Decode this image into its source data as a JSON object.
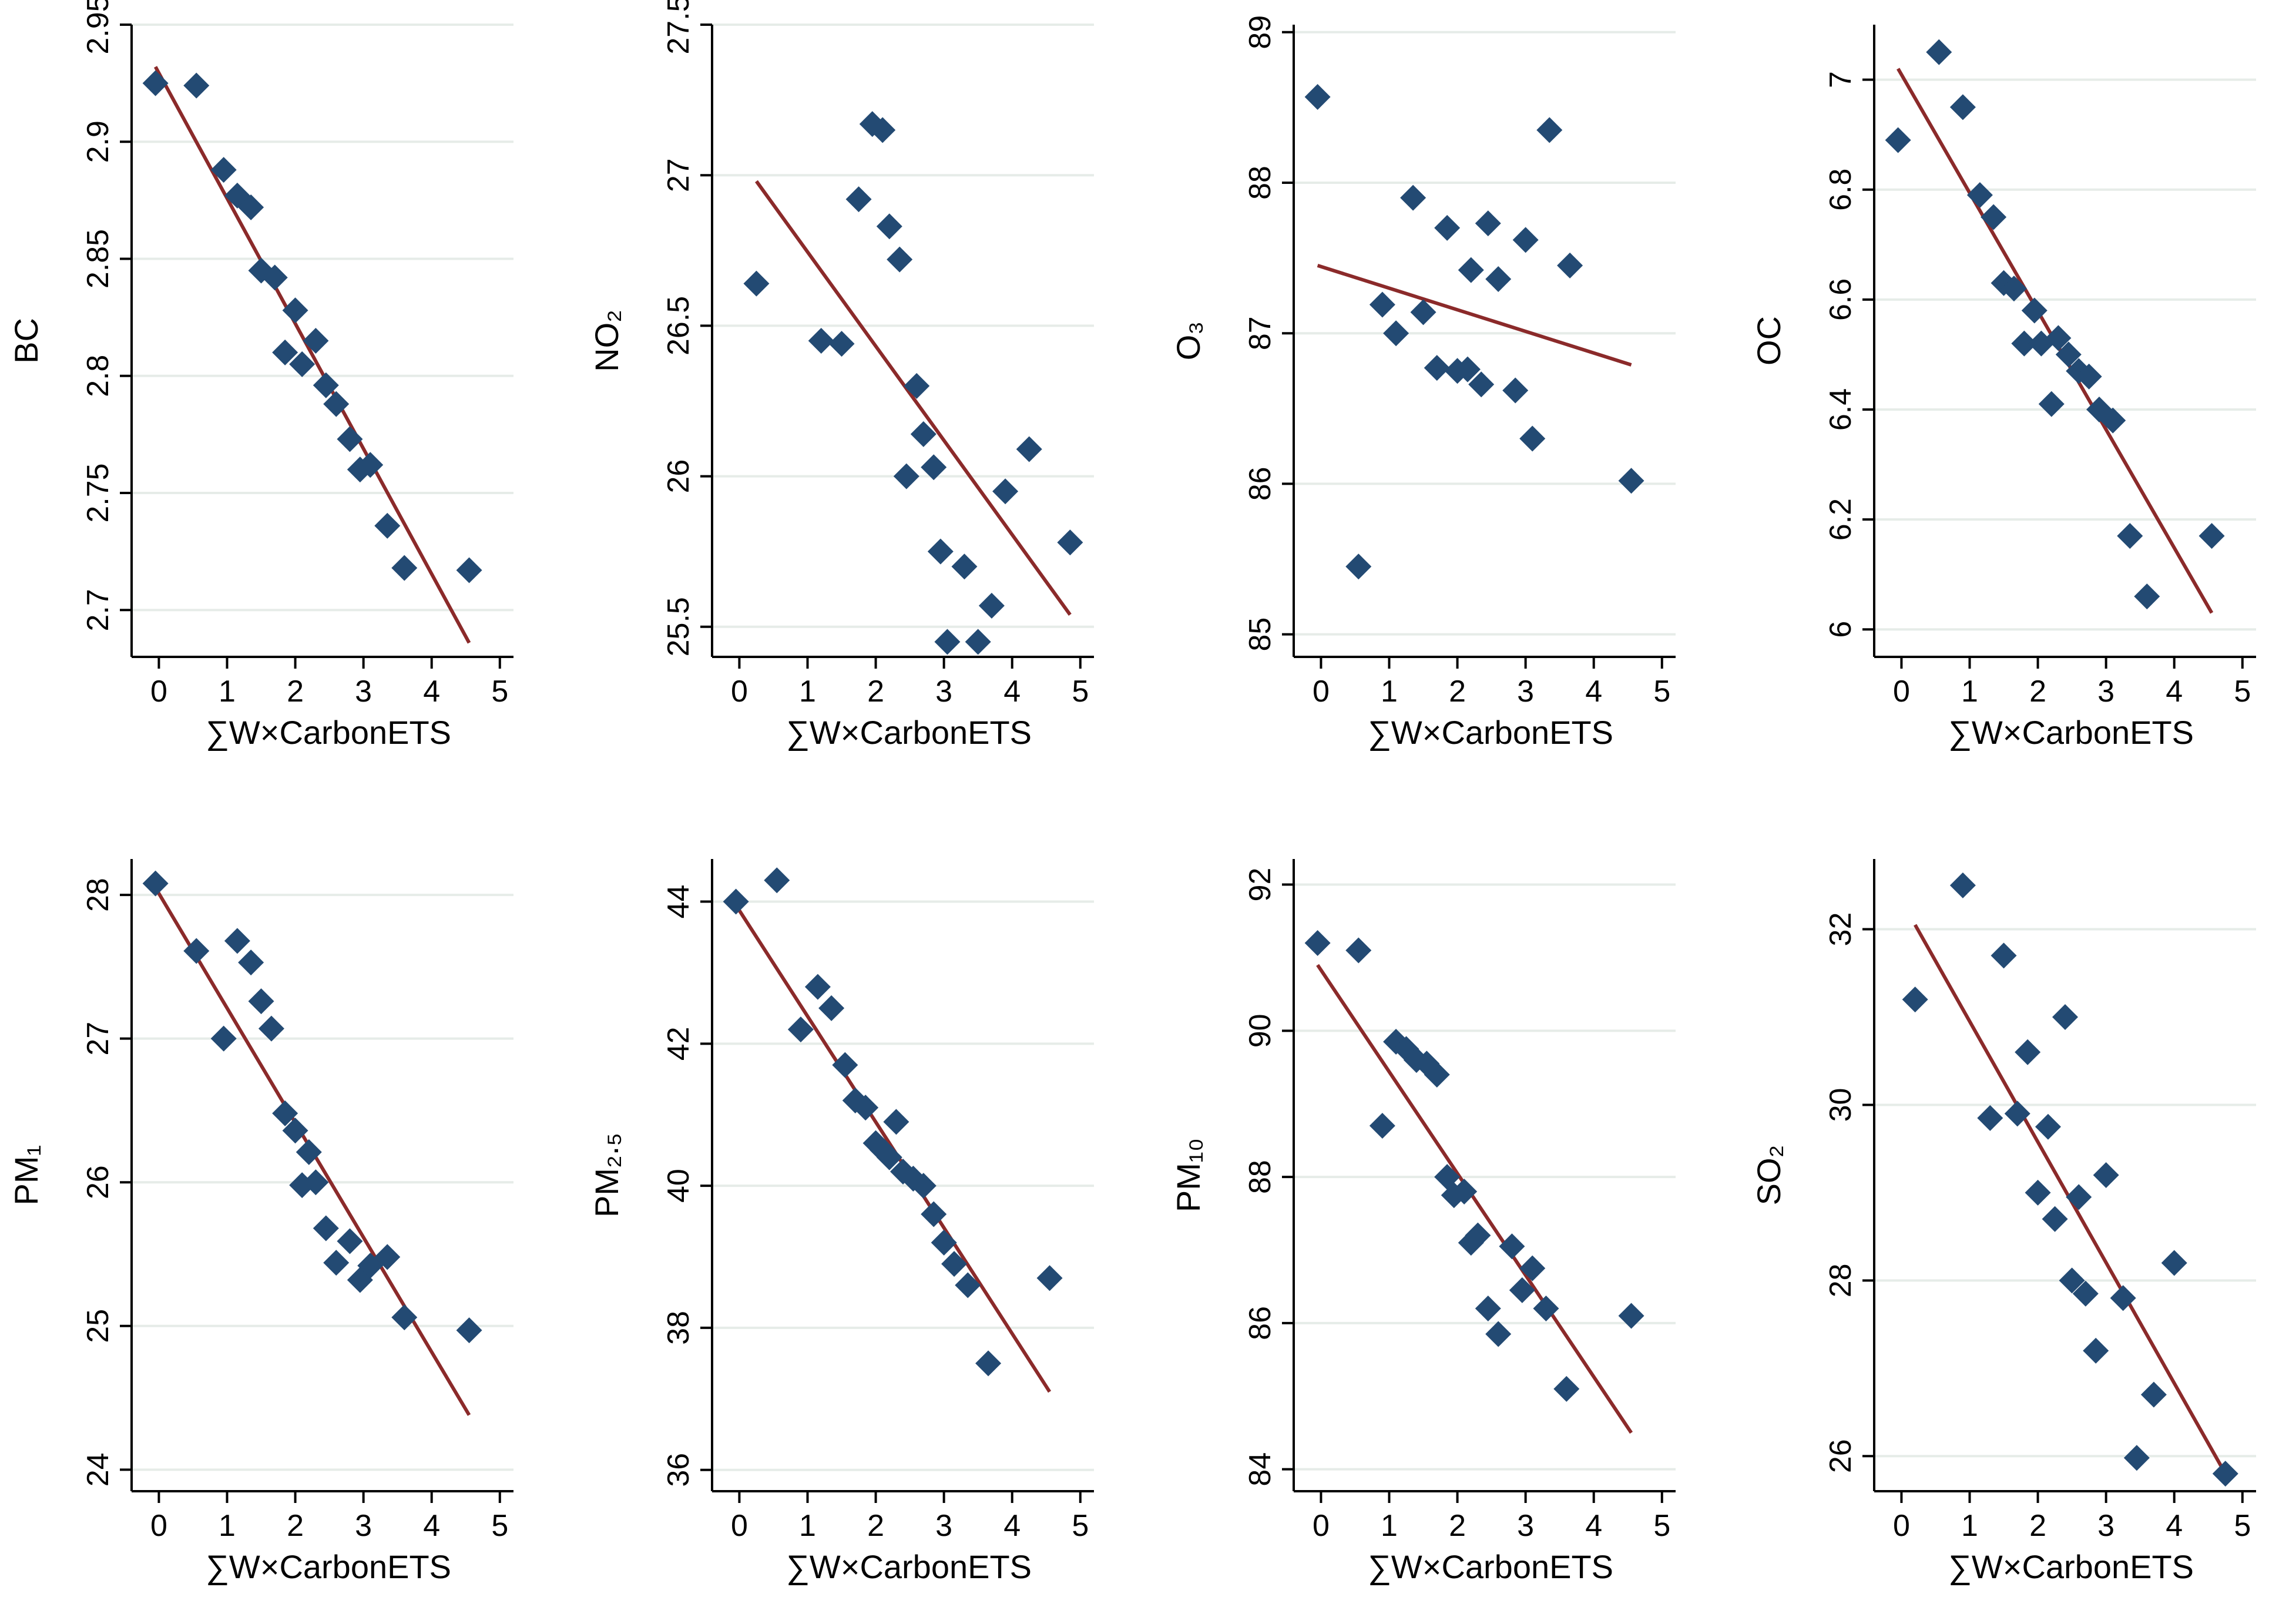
{
  "figure": {
    "background": "#ffffff",
    "marker_color": "#234a73",
    "fit_line_color": "#8b2a2a",
    "grid_color": "#e6ece8"
  },
  "chart_data": [
    {
      "type": "scatter",
      "id": "bc",
      "ylabel": "BC",
      "xlabel": "∑W×CarbonETS",
      "xlim": [
        -0.4,
        5.2
      ],
      "ylim": [
        2.68,
        2.95
      ],
      "xticks": [
        "0",
        "1",
        "2",
        "3",
        "4",
        "5"
      ],
      "yticks": [
        "2.7",
        "2.75",
        "2.8",
        "2.85",
        "2.9",
        "2.95"
      ],
      "points": [
        [
          -0.05,
          2.925
        ],
        [
          0.55,
          2.924
        ],
        [
          0.95,
          2.888
        ],
        [
          1.15,
          2.877
        ],
        [
          1.35,
          2.872
        ],
        [
          1.5,
          2.845
        ],
        [
          1.7,
          2.842
        ],
        [
          1.85,
          2.81
        ],
        [
          2.0,
          2.828
        ],
        [
          2.1,
          2.805
        ],
        [
          2.3,
          2.815
        ],
        [
          2.45,
          2.796
        ],
        [
          2.6,
          2.788
        ],
        [
          2.8,
          2.773
        ],
        [
          2.95,
          2.76
        ],
        [
          3.1,
          2.762
        ],
        [
          3.35,
          2.736
        ],
        [
          3.6,
          2.718
        ],
        [
          4.55,
          2.717
        ]
      ],
      "fit": [
        [
          -0.05,
          2.932
        ],
        [
          4.55,
          2.686
        ]
      ]
    },
    {
      "type": "scatter",
      "id": "no2",
      "ylabel": "NO₂",
      "xlabel": "∑W×CarbonETS",
      "xlim": [
        -0.4,
        5.2
      ],
      "ylim": [
        25.4,
        27.5
      ],
      "xticks": [
        "0",
        "1",
        "2",
        "3",
        "4",
        "5"
      ],
      "yticks": [
        "25.5",
        "26",
        "26.5",
        "27",
        "27.5"
      ],
      "points": [
        [
          0.25,
          26.64
        ],
        [
          1.2,
          26.45
        ],
        [
          1.5,
          26.44
        ],
        [
          1.75,
          26.92
        ],
        [
          1.95,
          27.17
        ],
        [
          2.1,
          27.15
        ],
        [
          2.2,
          26.83
        ],
        [
          2.35,
          26.72
        ],
        [
          2.45,
          26.0
        ],
        [
          2.6,
          26.3
        ],
        [
          2.7,
          26.14
        ],
        [
          2.85,
          26.03
        ],
        [
          2.95,
          25.75
        ],
        [
          3.05,
          25.45
        ],
        [
          3.3,
          25.7
        ],
        [
          3.5,
          25.45
        ],
        [
          3.7,
          25.57
        ],
        [
          3.9,
          25.95
        ],
        [
          4.25,
          26.09
        ],
        [
          4.85,
          25.78
        ]
      ],
      "fit": [
        [
          0.25,
          26.98
        ],
        [
          4.85,
          25.54
        ]
      ]
    },
    {
      "type": "scatter",
      "id": "o3",
      "ylabel": "O₃",
      "xlabel": "∑W×CarbonETS",
      "xlim": [
        -0.4,
        5.2
      ],
      "ylim": [
        84.85,
        89.05
      ],
      "xticks": [
        "0",
        "1",
        "2",
        "3",
        "4",
        "5"
      ],
      "yticks": [
        "85",
        "86",
        "87",
        "88",
        "89"
      ],
      "points": [
        [
          -0.05,
          88.57
        ],
        [
          0.55,
          85.45
        ],
        [
          0.9,
          87.19
        ],
        [
          1.1,
          87.0
        ],
        [
          1.35,
          87.9
        ],
        [
          1.5,
          87.14
        ],
        [
          1.7,
          86.77
        ],
        [
          1.85,
          87.7
        ],
        [
          2.0,
          86.75
        ],
        [
          2.15,
          86.76
        ],
        [
          2.2,
          87.42
        ],
        [
          2.35,
          86.66
        ],
        [
          2.45,
          87.73
        ],
        [
          2.6,
          87.36
        ],
        [
          2.85,
          86.62
        ],
        [
          3.0,
          87.62
        ],
        [
          3.1,
          86.3
        ],
        [
          3.35,
          88.35
        ],
        [
          3.65,
          87.45
        ],
        [
          4.55,
          86.02
        ]
      ],
      "fit": [
        [
          -0.05,
          87.45
        ],
        [
          4.55,
          86.79
        ]
      ]
    },
    {
      "type": "scatter",
      "id": "oc",
      "ylabel": "OC",
      "xlabel": "∑W×CarbonETS",
      "xlim": [
        -0.4,
        5.2
      ],
      "ylim": [
        5.95,
        7.1
      ],
      "xticks": [
        "0",
        "1",
        "2",
        "3",
        "4",
        "5"
      ],
      "yticks": [
        "6",
        "6.2",
        "6.4",
        "6.6",
        "6.8",
        "7"
      ],
      "points": [
        [
          -0.05,
          6.89
        ],
        [
          0.55,
          7.05
        ],
        [
          0.9,
          6.95
        ],
        [
          1.15,
          6.79
        ],
        [
          1.35,
          6.75
        ],
        [
          1.5,
          6.63
        ],
        [
          1.65,
          6.62
        ],
        [
          1.8,
          6.52
        ],
        [
          1.95,
          6.58
        ],
        [
          2.05,
          6.52
        ],
        [
          2.2,
          6.41
        ],
        [
          2.3,
          6.53
        ],
        [
          2.45,
          6.5
        ],
        [
          2.6,
          6.47
        ],
        [
          2.75,
          6.46
        ],
        [
          2.9,
          6.4
        ],
        [
          3.1,
          6.38
        ],
        [
          3.35,
          6.17
        ],
        [
          3.6,
          6.06
        ],
        [
          4.55,
          6.17
        ]
      ],
      "fit": [
        [
          -0.05,
          7.02
        ],
        [
          4.55,
          6.03
        ]
      ]
    },
    {
      "type": "scatter",
      "id": "pm1",
      "ylabel": "PM₁",
      "xlabel": "∑W×CarbonETS",
      "xlim": [
        -0.4,
        5.2
      ],
      "ylim": [
        23.85,
        28.25
      ],
      "xticks": [
        "0",
        "1",
        "2",
        "3",
        "4",
        "5"
      ],
      "yticks": [
        "24",
        "25",
        "26",
        "27",
        "28"
      ],
      "points": [
        [
          -0.05,
          28.08
        ],
        [
          0.55,
          27.61
        ],
        [
          0.95,
          27.0
        ],
        [
          1.15,
          27.68
        ],
        [
          1.35,
          27.53
        ],
        [
          1.5,
          27.26
        ],
        [
          1.65,
          27.07
        ],
        [
          1.85,
          26.48
        ],
        [
          2.0,
          26.36
        ],
        [
          2.1,
          25.98
        ],
        [
          2.2,
          26.21
        ],
        [
          2.3,
          26.0
        ],
        [
          2.45,
          25.68
        ],
        [
          2.6,
          25.44
        ],
        [
          2.8,
          25.59
        ],
        [
          2.95,
          25.32
        ],
        [
          3.1,
          25.42
        ],
        [
          3.35,
          25.48
        ],
        [
          3.6,
          25.06
        ],
        [
          4.55,
          24.97
        ]
      ],
      "fit": [
        [
          -0.05,
          28.05
        ],
        [
          4.55,
          24.38
        ]
      ]
    },
    {
      "type": "scatter",
      "id": "pm25",
      "ylabel": "PM₂.₅",
      "xlabel": "∑W×CarbonETS",
      "xlim": [
        -0.4,
        5.2
      ],
      "ylim": [
        35.7,
        44.6
      ],
      "xticks": [
        "0",
        "1",
        "2",
        "3",
        "4",
        "5"
      ],
      "yticks": [
        "36",
        "38",
        "40",
        "42",
        "44"
      ],
      "points": [
        [
          -0.05,
          44.0
        ],
        [
          0.55,
          44.3
        ],
        [
          0.9,
          42.2
        ],
        [
          1.15,
          42.8
        ],
        [
          1.35,
          42.5
        ],
        [
          1.55,
          41.7
        ],
        [
          1.7,
          41.2
        ],
        [
          1.85,
          41.1
        ],
        [
          2.0,
          40.6
        ],
        [
          2.1,
          40.5
        ],
        [
          2.2,
          40.4
        ],
        [
          2.3,
          40.9
        ],
        [
          2.4,
          40.2
        ],
        [
          2.55,
          40.1
        ],
        [
          2.7,
          40.0
        ],
        [
          2.85,
          39.6
        ],
        [
          3.0,
          39.2
        ],
        [
          3.15,
          38.9
        ],
        [
          3.35,
          38.6
        ],
        [
          3.65,
          37.5
        ],
        [
          4.55,
          38.7
        ]
      ],
      "fit": [
        [
          -0.05,
          43.95
        ],
        [
          4.55,
          37.1
        ]
      ]
    },
    {
      "type": "scatter",
      "id": "pm10",
      "ylabel": "PM₁₀",
      "xlabel": "∑W×CarbonETS",
      "xlim": [
        -0.4,
        5.2
      ],
      "ylim": [
        83.7,
        92.35
      ],
      "xticks": [
        "0",
        "1",
        "2",
        "3",
        "4",
        "5"
      ],
      "yticks": [
        "84",
        "86",
        "88",
        "90",
        "92"
      ],
      "points": [
        [
          -0.05,
          91.2
        ],
        [
          0.55,
          91.1
        ],
        [
          0.9,
          88.7
        ],
        [
          1.1,
          89.85
        ],
        [
          1.25,
          89.75
        ],
        [
          1.4,
          89.6
        ],
        [
          1.55,
          89.55
        ],
        [
          1.7,
          89.4
        ],
        [
          1.85,
          88.0
        ],
        [
          1.95,
          87.75
        ],
        [
          2.1,
          87.8
        ],
        [
          2.2,
          87.1
        ],
        [
          2.3,
          87.2
        ],
        [
          2.45,
          86.2
        ],
        [
          2.6,
          85.85
        ],
        [
          2.8,
          87.05
        ],
        [
          2.95,
          86.45
        ],
        [
          3.1,
          86.75
        ],
        [
          3.3,
          86.2
        ],
        [
          3.6,
          85.1
        ],
        [
          4.55,
          86.1
        ]
      ],
      "fit": [
        [
          -0.05,
          90.9
        ],
        [
          4.55,
          84.5
        ]
      ]
    },
    {
      "type": "scatter",
      "id": "so2",
      "ylabel": "SO₂",
      "xlabel": "∑W×CarbonETS",
      "xlim": [
        -0.4,
        5.2
      ],
      "ylim": [
        25.6,
        32.8
      ],
      "xticks": [
        "0",
        "1",
        "2",
        "3",
        "4",
        "5"
      ],
      "yticks": [
        "26",
        "28",
        "30",
        "32"
      ],
      "points": [
        [
          0.2,
          31.2
        ],
        [
          0.9,
          32.5
        ],
        [
          1.3,
          29.85
        ],
        [
          1.5,
          31.7
        ],
        [
          1.7,
          29.9
        ],
        [
          1.85,
          30.6
        ],
        [
          2.0,
          29.0
        ],
        [
          2.15,
          29.75
        ],
        [
          2.25,
          28.7
        ],
        [
          2.4,
          31.0
        ],
        [
          2.5,
          28.0
        ],
        [
          2.6,
          28.95
        ],
        [
          2.7,
          27.85
        ],
        [
          2.85,
          27.2
        ],
        [
          3.0,
          29.2
        ],
        [
          3.25,
          27.8
        ],
        [
          3.45,
          25.98
        ],
        [
          3.7,
          26.7
        ],
        [
          4.0,
          28.2
        ],
        [
          4.75,
          25.8
        ]
      ],
      "fit": [
        [
          0.2,
          32.05
        ],
        [
          4.75,
          25.8
        ]
      ]
    }
  ]
}
